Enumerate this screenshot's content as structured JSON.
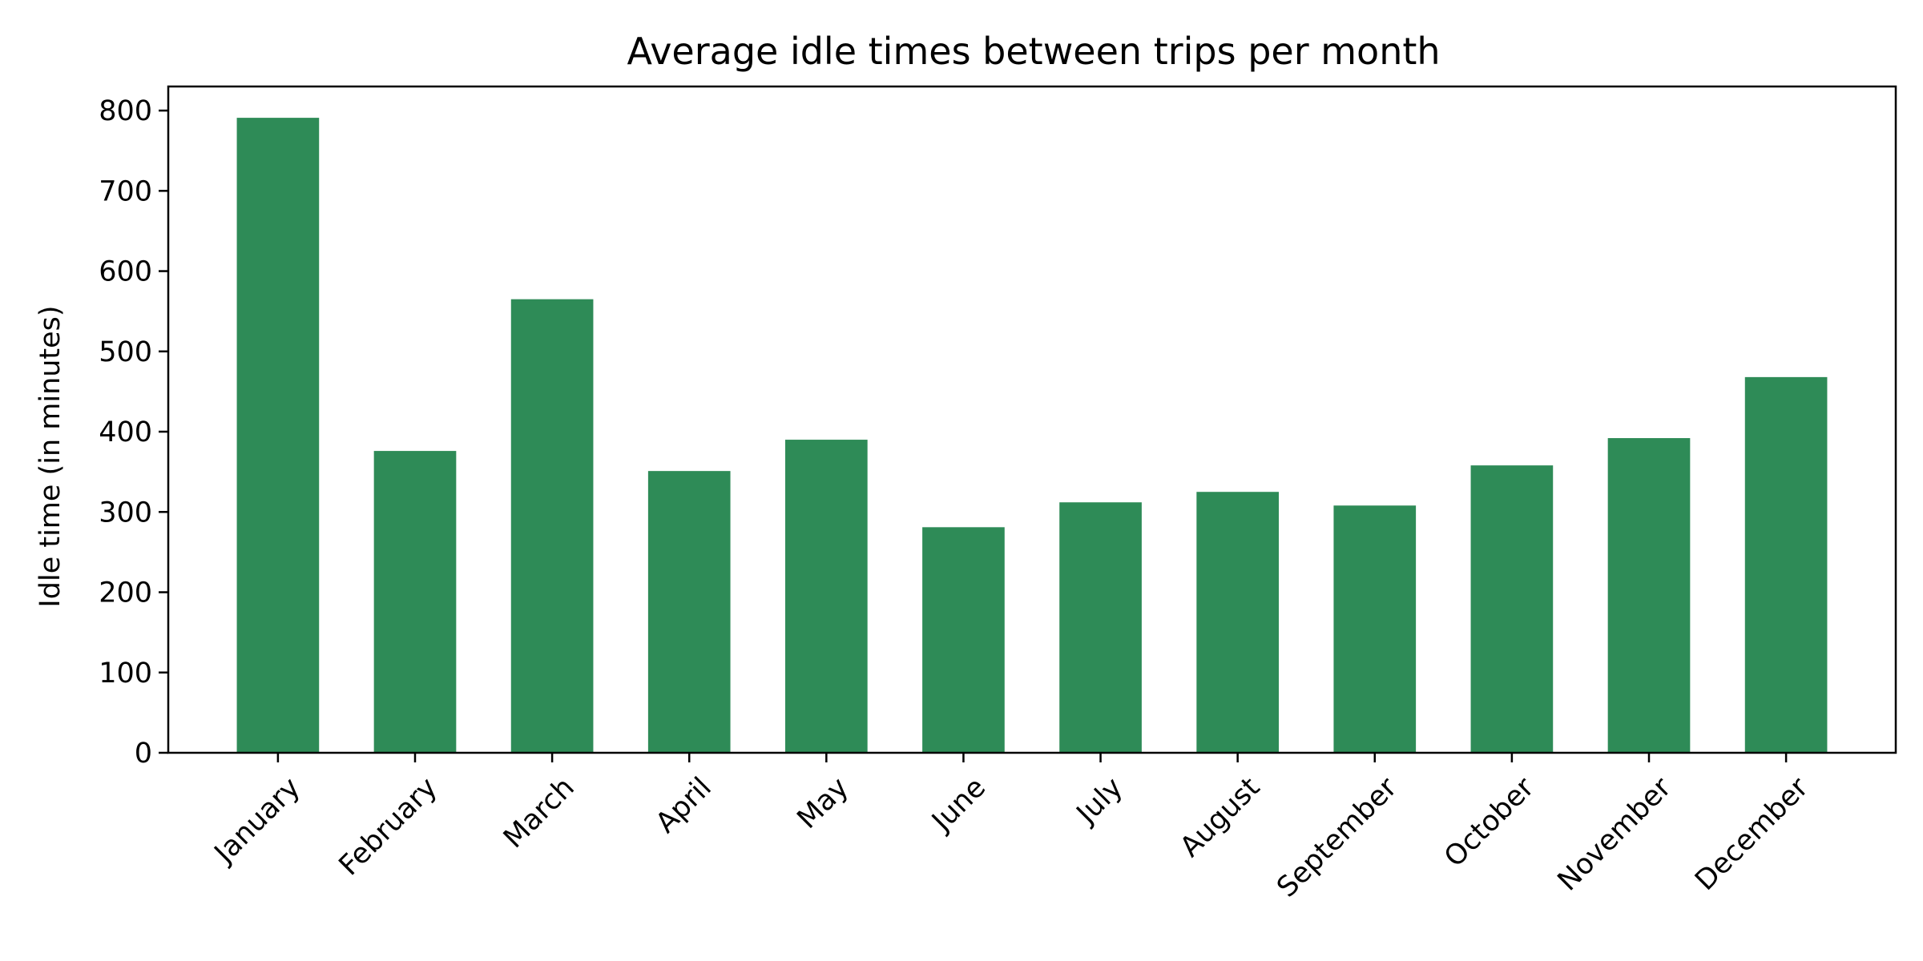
{
  "chart_data": {
    "type": "bar",
    "title": "Average idle times between trips per month",
    "xlabel": "",
    "ylabel": "Idle time (in minutes)",
    "categories": [
      "January",
      "February",
      "March",
      "April",
      "May",
      "June",
      "July",
      "August",
      "September",
      "October",
      "November",
      "December"
    ],
    "values": [
      791,
      376,
      565,
      351,
      390,
      281,
      312,
      325,
      308,
      358,
      392,
      468
    ],
    "ylim": [
      0,
      830
    ],
    "yticks": [
      0,
      100,
      200,
      300,
      400,
      500,
      600,
      700,
      800
    ],
    "grid": false,
    "legend": "none",
    "bar_color": "#2e8b57"
  }
}
